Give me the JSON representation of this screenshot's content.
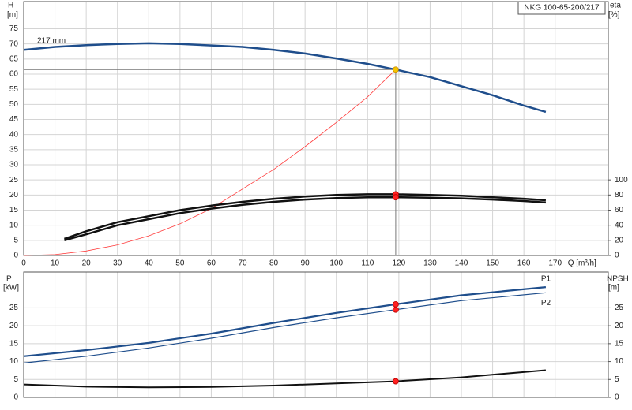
{
  "chart_data": [
    {
      "type": "line",
      "title": "NKG 100-65-200/217",
      "annotation": "217 mm",
      "ylabel": "H",
      "yunit": "[m]",
      "y2label": "eta",
      "y2unit": "[%]",
      "xlabel": "Q [m³/h]",
      "xlim": [
        0,
        187
      ],
      "xticks": [
        0,
        10,
        20,
        30,
        40,
        50,
        60,
        70,
        80,
        90,
        100,
        110,
        120,
        130,
        140,
        150,
        160,
        170
      ],
      "ylim": [
        0,
        84
      ],
      "yticks": [
        0,
        5,
        10,
        15,
        20,
        25,
        30,
        35,
        40,
        45,
        50,
        55,
        60,
        65,
        70,
        75
      ],
      "y2lim": [
        0,
        336
      ],
      "y2ticks": [
        0,
        20,
        40,
        60,
        80,
        100
      ],
      "grid": true,
      "show_xtick_labels": true,
      "series": [
        {
          "color": "#1f4e8c",
          "width": 2.5,
          "x": [
            0,
            10,
            20,
            30,
            40,
            50,
            60,
            70,
            80,
            90,
            100,
            110,
            119,
            130,
            140,
            150,
            160,
            167
          ],
          "values": [
            68,
            69,
            69.6,
            70,
            70.2,
            70,
            69.5,
            69,
            68,
            66.8,
            65.2,
            63.4,
            61.5,
            59,
            56,
            53,
            49.6,
            47.5
          ],
          "point": [
            119,
            61.5
          ],
          "point_color": "#f5c400",
          "crosshair": true
        },
        {
          "color": "#ff3b3b",
          "width": 0.8,
          "x": [
            0,
            10,
            20,
            30,
            40,
            50,
            60,
            70,
            80,
            90,
            100,
            110,
            119
          ],
          "values": [
            0,
            0.3,
            1.5,
            3.5,
            6.5,
            10.5,
            15.5,
            22,
            28.5,
            36,
            44,
            52.5,
            61.5
          ]
        },
        {
          "color": "#111111",
          "width": 2.5,
          "axis": "y2",
          "x": [
            13,
            20,
            30,
            40,
            50,
            60,
            70,
            80,
            90,
            100,
            110,
            119,
            130,
            140,
            150,
            160,
            167
          ],
          "values": [
            22,
            32,
            44,
            52,
            60,
            66,
            71,
            75,
            78,
            80,
            81,
            81,
            80,
            79,
            77,
            75,
            73
          ],
          "point": [
            119,
            81
          ],
          "point_color": "#ff2020"
        },
        {
          "color": "#111111",
          "width": 2.5,
          "axis": "y2",
          "x": [
            13,
            20,
            30,
            40,
            50,
            60,
            70,
            80,
            90,
            100,
            110,
            119,
            130,
            140,
            150,
            160,
            167
          ],
          "values": [
            20,
            28,
            40,
            48,
            56,
            62,
            67,
            71,
            74,
            76,
            77,
            77,
            76.5,
            75.5,
            74,
            72,
            70
          ],
          "point": [
            119,
            77
          ],
          "point_color": "#ff2020"
        }
      ]
    },
    {
      "type": "line",
      "ylabel": "P",
      "yunit": "[kW]",
      "y2label": "NPSH",
      "y2unit": "[m]",
      "xlim": [
        0,
        187
      ],
      "xticks": [
        0,
        10,
        20,
        30,
        40,
        50,
        60,
        70,
        80,
        90,
        100,
        110,
        120,
        130,
        140,
        150,
        160,
        170
      ],
      "ylim": [
        0,
        35
      ],
      "yticks": [
        0,
        5,
        10,
        15,
        20,
        25
      ],
      "y2lim": [
        0,
        35
      ],
      "y2ticks": [
        0,
        5,
        10,
        15,
        20,
        25
      ],
      "grid": true,
      "show_xtick_labels": false,
      "series": [
        {
          "name": "P1",
          "color": "#1f4e8c",
          "width": 2.2,
          "x": [
            0,
            20,
            40,
            60,
            80,
            100,
            119,
            140,
            167
          ],
          "values": [
            11.5,
            13.2,
            15.2,
            17.8,
            20.8,
            23.6,
            26,
            28.5,
            30.8
          ],
          "point": [
            119,
            26
          ],
          "point_color": "#ff2020"
        },
        {
          "name": "P2",
          "color": "#1f4e8c",
          "width": 1.2,
          "x": [
            0,
            20,
            40,
            60,
            80,
            100,
            119,
            140,
            167
          ],
          "values": [
            9.6,
            11.5,
            13.8,
            16.5,
            19.5,
            22.2,
            24.5,
            27,
            29.2
          ],
          "point": [
            119,
            24.5
          ],
          "point_color": "#ff2020"
        },
        {
          "color": "#111111",
          "width": 2,
          "axis": "y2",
          "x": [
            0,
            20,
            40,
            60,
            80,
            100,
            119,
            140,
            167
          ],
          "values": [
            3.6,
            3,
            2.8,
            2.9,
            3.3,
            3.9,
            4.5,
            5.6,
            7.6
          ],
          "point": [
            119,
            4.5
          ],
          "point_color": "#ff2020"
        }
      ]
    }
  ]
}
